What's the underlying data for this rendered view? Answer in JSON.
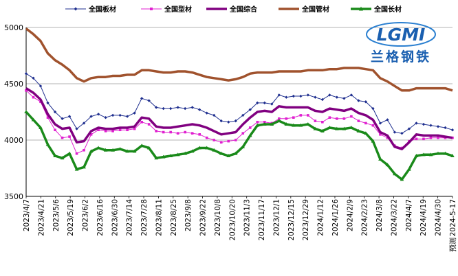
{
  "chart_data": {
    "type": "line",
    "title": "",
    "xlabel": "",
    "ylabel": "",
    "ylim": [
      3500,
      5000
    ],
    "yticks": [
      3500,
      4000,
      4500,
      5000
    ],
    "grid": "horizontal",
    "legend_position": "top",
    "x_tick_labels": [
      "2023/4/7",
      "2023/4/21",
      "2023/5/6",
      "2023/5/19",
      "2023/6/2",
      "2023/6/16",
      "2023/6/30",
      "2023/7/14",
      "2023/7/28",
      "2023/8/11",
      "2023/8/25",
      "2023/9/8",
      "2023/9/22",
      "2023/10/8",
      "2023/10/20",
      "2023/11/3",
      "2023/11/17",
      "2023/12/1",
      "2023/12/15",
      "2023/12/29",
      "2024/1/12",
      "2024/1/26",
      "2024/2/9",
      "2024/2/23",
      "2024/3/8",
      "2024/3/22",
      "2024/4/7",
      "2024/4/19",
      "2024/4/30",
      "2024-5-17"
    ],
    "x_note": "预测",
    "logo": {
      "text": "兰格钢铁",
      "mark": "LGMI"
    },
    "series": [
      {
        "name": "全国板材",
        "color": "#1f2f8f",
        "style": "thin-diamond",
        "values": [
          4590,
          4550,
          4480,
          4330,
          4250,
          4190,
          4210,
          4100,
          4150,
          4210,
          4230,
          4200,
          4220,
          4220,
          4210,
          4240,
          4370,
          4350,
          4290,
          4280,
          4280,
          4290,
          4280,
          4290,
          4270,
          4240,
          4220,
          4170,
          4160,
          4170,
          4220,
          4270,
          4330,
          4330,
          4320,
          4400,
          4380,
          4390,
          4390,
          4400,
          4380,
          4360,
          4400,
          4380,
          4370,
          4400,
          4350,
          4340,
          4280,
          4150,
          4180,
          4070,
          4060,
          4100,
          4150,
          4140,
          4130,
          4120,
          4110,
          4090
        ]
      },
      {
        "name": "全国型材",
        "color": "#e020d0",
        "style": "thin-square",
        "values": [
          4440,
          4380,
          4340,
          4200,
          4090,
          4020,
          4030,
          3880,
          3910,
          4050,
          4090,
          4080,
          4080,
          4090,
          4090,
          4100,
          4160,
          4140,
          4080,
          4070,
          4070,
          4060,
          4070,
          4060,
          4050,
          4020,
          4000,
          3980,
          3990,
          4000,
          4060,
          4110,
          4160,
          4160,
          4150,
          4190,
          4190,
          4200,
          4220,
          4220,
          4170,
          4160,
          4200,
          4190,
          4190,
          4210,
          4170,
          4150,
          4130,
          4050,
          4020,
          3950,
          3930,
          3990,
          4010,
          4010,
          4020,
          4020,
          4020,
          4020
        ]
      },
      {
        "name": "全国综合",
        "color": "#800080",
        "style": "thick",
        "values": [
          4460,
          4420,
          4360,
          4230,
          4140,
          4100,
          4110,
          3980,
          3990,
          4080,
          4110,
          4100,
          4100,
          4110,
          4110,
          4120,
          4200,
          4190,
          4120,
          4110,
          4110,
          4120,
          4130,
          4140,
          4130,
          4110,
          4080,
          4050,
          4060,
          4070,
          4140,
          4200,
          4250,
          4260,
          4250,
          4300,
          4290,
          4290,
          4290,
          4290,
          4260,
          4250,
          4280,
          4270,
          4260,
          4280,
          4240,
          4220,
          4180,
          4070,
          4040,
          3940,
          3920,
          3980,
          4050,
          4040,
          4040,
          4040,
          4030,
          4020
        ]
      },
      {
        "name": "全国管材",
        "color": "#a0522d",
        "style": "thick",
        "values": [
          4990,
          4940,
          4880,
          4770,
          4710,
          4670,
          4620,
          4550,
          4520,
          4550,
          4560,
          4560,
          4570,
          4570,
          4580,
          4580,
          4620,
          4620,
          4610,
          4600,
          4600,
          4610,
          4610,
          4600,
          4580,
          4560,
          4550,
          4540,
          4530,
          4540,
          4560,
          4590,
          4600,
          4600,
          4600,
          4610,
          4610,
          4610,
          4610,
          4620,
          4620,
          4620,
          4630,
          4630,
          4640,
          4640,
          4640,
          4630,
          4620,
          4550,
          4520,
          4480,
          4440,
          4440,
          4460,
          4460,
          4460,
          4460,
          4460,
          4440
        ]
      },
      {
        "name": "全国长材",
        "color": "#1a8a1a",
        "style": "thick-triangle",
        "values": [
          4250,
          4180,
          4110,
          3960,
          3860,
          3840,
          3880,
          3740,
          3760,
          3900,
          3930,
          3910,
          3910,
          3920,
          3900,
          3900,
          3950,
          3930,
          3840,
          3850,
          3860,
          3870,
          3880,
          3900,
          3930,
          3930,
          3910,
          3880,
          3860,
          3880,
          3940,
          4040,
          4130,
          4140,
          4140,
          4170,
          4140,
          4130,
          4130,
          4140,
          4100,
          4080,
          4110,
          4100,
          4100,
          4110,
          4080,
          4060,
          3990,
          3830,
          3780,
          3700,
          3650,
          3740,
          3860,
          3870,
          3870,
          3880,
          3880,
          3860
        ]
      }
    ]
  }
}
